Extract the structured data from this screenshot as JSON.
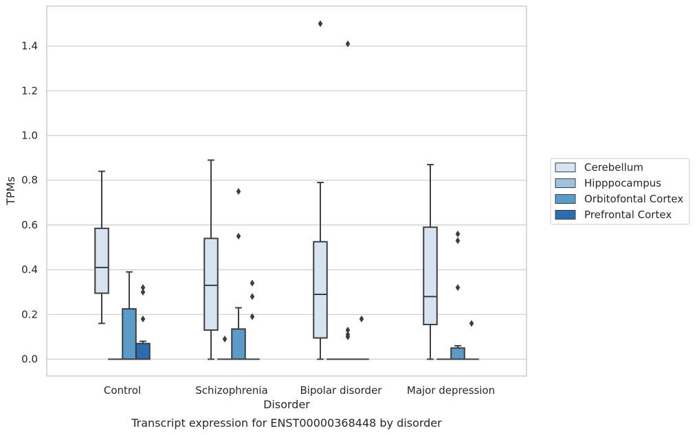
{
  "chart_data": {
    "type": "box",
    "xlabel": "Disorder",
    "ylabel": "TPMs",
    "caption": "Transcript expression for ENST00000368448 by disorder",
    "ylim": [
      -0.07,
      1.56
    ],
    "yticks": [
      "0.0",
      "0.2",
      "0.4",
      "0.6",
      "0.8",
      "1.0",
      "1.2",
      "1.4"
    ],
    "grid": true,
    "legend_position": "right",
    "categories": [
      "Control",
      "Schizophrenia",
      "Bipolar disorder",
      "Major depression"
    ],
    "series": [
      {
        "name": "Cerebellum",
        "color": "#d6e4f2",
        "boxes": [
          {
            "whislo": 0.16,
            "q1": 0.295,
            "med": 0.41,
            "q3": 0.585,
            "whishi": 0.84,
            "fliers": []
          },
          {
            "whislo": 0.0,
            "q1": 0.13,
            "med": 0.33,
            "q3": 0.54,
            "whishi": 0.89,
            "fliers": []
          },
          {
            "whislo": 0.0,
            "q1": 0.095,
            "med": 0.29,
            "q3": 0.525,
            "whishi": 0.79,
            "fliers": [
              1.5
            ]
          },
          {
            "whislo": 0.0,
            "q1": 0.155,
            "med": 0.28,
            "q3": 0.59,
            "whishi": 0.87,
            "fliers": []
          }
        ]
      },
      {
        "name": "Hipppocampus",
        "color": "#9dc3de",
        "boxes": [
          {
            "whislo": 0.0,
            "q1": 0.0,
            "med": 0.0,
            "q3": 0.0,
            "whishi": 0.0,
            "fliers": []
          },
          {
            "whislo": 0.0,
            "q1": 0.0,
            "med": 0.0,
            "q3": 0.0,
            "whishi": 0.0,
            "fliers": [
              0.09
            ]
          },
          {
            "whislo": 0.0,
            "q1": 0.0,
            "med": 0.0,
            "q3": 0.0,
            "whishi": 0.0,
            "fliers": []
          },
          {
            "whislo": 0.0,
            "q1": 0.0,
            "med": 0.0,
            "q3": 0.0,
            "whishi": 0.0,
            "fliers": []
          }
        ]
      },
      {
        "name": "Orbitofontal Cortex",
        "color": "#5b9bc9",
        "boxes": [
          {
            "whislo": 0.0,
            "q1": 0.0,
            "med": 0.0,
            "q3": 0.225,
            "whishi": 0.39,
            "fliers": []
          },
          {
            "whislo": 0.0,
            "q1": 0.0,
            "med": 0.0,
            "q3": 0.135,
            "whishi": 0.23,
            "fliers": [
              0.75,
              0.55
            ]
          },
          {
            "whislo": 0.0,
            "q1": 0.0,
            "med": 0.0,
            "q3": 0.0,
            "whishi": 0.0,
            "fliers": [
              0.1,
              0.11,
              0.13,
              1.41
            ]
          },
          {
            "whislo": 0.0,
            "q1": 0.0,
            "med": 0.0,
            "q3": 0.05,
            "whishi": 0.06,
            "fliers": [
              0.56,
              0.53,
              0.32
            ]
          }
        ]
      },
      {
        "name": "Prefrontal Cortex",
        "color": "#2a6eaf",
        "boxes": [
          {
            "whislo": 0.0,
            "q1": 0.0,
            "med": 0.0,
            "q3": 0.07,
            "whishi": 0.08,
            "fliers": [
              0.32,
              0.3,
              0.18
            ]
          },
          {
            "whislo": 0.0,
            "q1": 0.0,
            "med": 0.0,
            "q3": 0.0,
            "whishi": 0.0,
            "fliers": [
              0.34,
              0.28,
              0.19
            ]
          },
          {
            "whislo": 0.0,
            "q1": 0.0,
            "med": 0.0,
            "q3": 0.0,
            "whishi": 0.0,
            "fliers": [
              0.18
            ]
          },
          {
            "whislo": 0.0,
            "q1": 0.0,
            "med": 0.0,
            "q3": 0.0,
            "whishi": 0.0,
            "fliers": [
              0.16
            ]
          }
        ]
      }
    ]
  }
}
